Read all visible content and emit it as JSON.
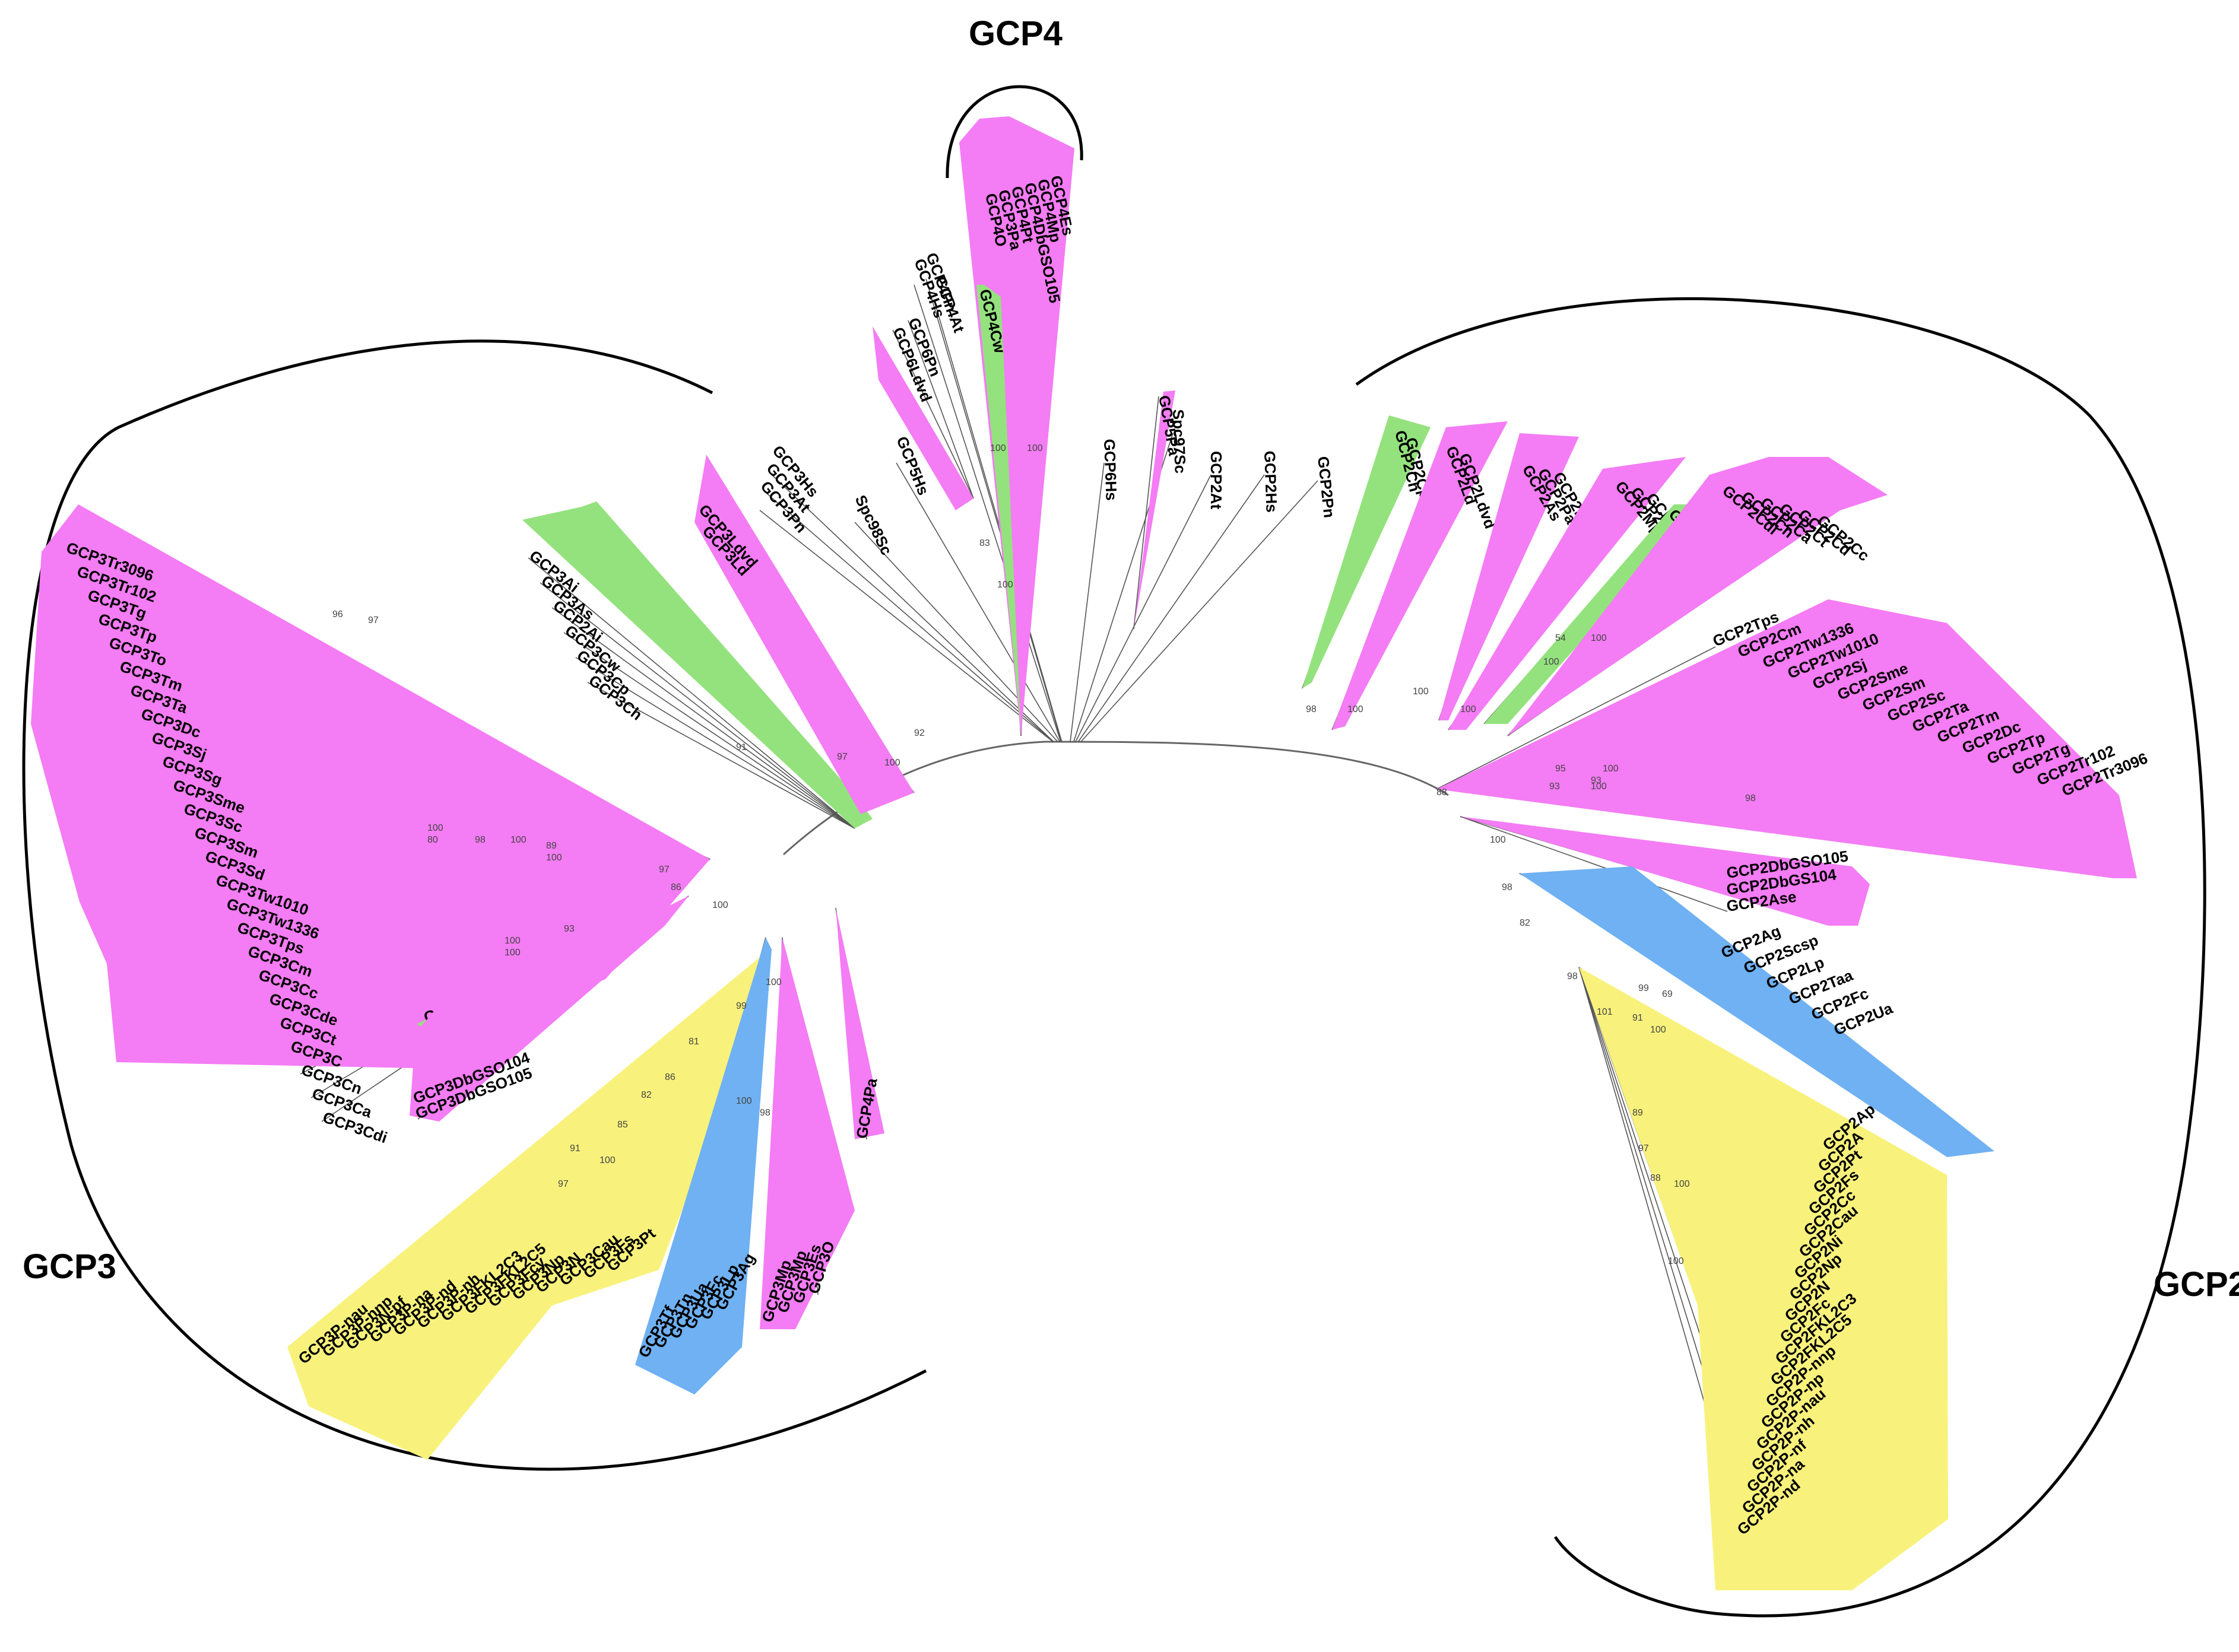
{
  "colors": {
    "pink": "#f47cf4",
    "green": "#94e27e",
    "blue": "#6fb1f2",
    "yellow": "#f8f27c"
  },
  "captions": {
    "gcp2": "GCP2",
    "gcp3": "GCP3",
    "gcp4": "GCP4"
  },
  "gcp3_groups": [
    {
      "name": "gcp3-main-pink",
      "color": "pink",
      "labels": [
        "GCP3Tr3096",
        "GCP3Tr102",
        "GCP3Tg",
        "GCP3Tp",
        "GCP3To",
        "GCP3Tm",
        "GCP3Ta",
        "GCP3Dc",
        "GCP3Sj",
        "GCP3Sg",
        "GCP3Sme",
        "GCP3Sc",
        "GCP3Sm",
        "GCP3Sd",
        "GCP3Tw1010",
        "GCP3Tw1336",
        "GCP3Tps",
        "GCP3Cm",
        "GCP3Cc",
        "GCP3Cde",
        "GCP3Ct",
        "GCP3C",
        "GCP3Cn",
        "GCP3Ca",
        "GCP3Cdi"
      ]
    },
    {
      "name": "gcp3-df-green",
      "color": "green",
      "labels": [
        "GCP3Df"
      ]
    },
    {
      "name": "gcp3-dbgso-pink",
      "color": "pink",
      "labels": [
        "GCP3DbGSO104",
        "GCP3DbGSO105"
      ]
    },
    {
      "name": "gcp3-plant-green",
      "color": "green",
      "labels": [
        "GCP3Ai",
        "GCP3As",
        "GCP2Ai",
        "GCP3Cw",
        "GCP3Cp",
        "GCP3Ch"
      ]
    },
    {
      "name": "gcp3-ld-pink",
      "color": "pink",
      "labels": [
        "GCP3Ldvd",
        "GCP3Ld"
      ]
    },
    {
      "name": "gcp3-yellow",
      "color": "yellow",
      "labels": [
        "GCP3P-nau",
        "GCP3P-nnp",
        "GCP3N-pf",
        "GCP3P-na",
        "GCP3P-nd",
        "GCP3P-nh",
        "GCP3FKL2C3",
        "GCP3FKL2C5",
        "GCP3Fcy",
        "GCP3Np",
        "GCP3N",
        "GCP3Cau",
        "GCP3Fs",
        "GCP3Pt"
      ]
    },
    {
      "name": "gcp3-blue",
      "color": "blue",
      "labels": [
        "GCP3Tf",
        "GCP3Tn",
        "GCP3Ua",
        "GCP3Fc",
        "GCP3Lp",
        "GCP3Ag"
      ]
    },
    {
      "name": "gcp3-es-pink",
      "color": "pink",
      "labels": [
        "GCP3Mp",
        "GCP3Mp",
        "GCP3Es",
        "GCP3O"
      ]
    },
    {
      "name": "gcp4pa-pink",
      "color": "pink",
      "labels": [
        "GCP4Pa"
      ]
    }
  ],
  "gcp4_groups": [
    {
      "name": "gcp4-main-pink",
      "color": "pink",
      "labels": [
        "GCP4Es",
        "GCP4Mp",
        "GCP4DbGSO105",
        "GCP4Pt",
        "GCP3Pa",
        "GCP4O"
      ]
    },
    {
      "name": "gcp4-cw-green",
      "color": "green",
      "labels": [
        "GCP4Cw"
      ]
    },
    {
      "name": "gcp6-ld-pink",
      "color": "pink",
      "labels": [
        "GCP6Pn",
        "GCP6Ldvd"
      ]
    }
  ],
  "gcp2_groups": [
    {
      "name": "gcp5pa-pink",
      "color": "pink",
      "labels": [
        "GCP5Pa"
      ]
    },
    {
      "name": "gcp2-ch-green",
      "color": "green",
      "labels": [
        "GCP2Ch",
        "GCP2Cp"
      ]
    },
    {
      "name": "gcp2-ld-pink",
      "color": "pink",
      "labels": [
        "GCP2Ld",
        "GCP2Ldvd"
      ]
    },
    {
      "name": "gcp2-as-pink",
      "color": "pink",
      "labels": [
        "GCP2As",
        "GCP2Pa",
        "GCP2Pi"
      ]
    },
    {
      "name": "gcp2-mp-pink",
      "color": "pink",
      "labels": [
        "GCP2Mp",
        "GCP2Es",
        "GCP2Ea"
      ]
    },
    {
      "name": "gcp2-df-green",
      "color": "green",
      "labels": [
        "GCP2Df"
      ]
    },
    {
      "name": "gcp2-c-pink",
      "color": "pink",
      "labels": [
        "GCP2Cdi",
        "GCP2Cn",
        "GCP2Ca",
        "GCP2Ct",
        "GCP2Cd",
        "GCP2Cc"
      ]
    },
    {
      "name": "gcp2-main-pink",
      "color": "pink",
      "labels": [
        "GCP2Tps",
        "GCP2Cm",
        "GCP2Tw1336",
        "GCP2Tw1010",
        "GCP2Sj",
        "GCP2Sme",
        "GCP2Sm",
        "GCP2Sc",
        "GCP2Ta",
        "GCP2Tm",
        "GCP2Dc",
        "GCP2Tp",
        "GCP2Tg",
        "GCP2Tr102",
        "GCP2Tr3096"
      ]
    },
    {
      "name": "gcp2-dbgso-pink",
      "color": "pink",
      "labels": [
        "GCP2DbGSO105",
        "GCP2DbGS104",
        "GCP2Ase"
      ]
    },
    {
      "name": "gcp2-blue",
      "color": "blue",
      "labels": [
        "GCP2Ag",
        "GCP2Scsp",
        "GCP2Lp",
        "GCP2Taa",
        "GCP2Fc",
        "GCP2Ua"
      ]
    },
    {
      "name": "gcp2-yellow",
      "color": "yellow",
      "labels": [
        "GCP2Ap",
        "GCP2A",
        "GCP2Pt",
        "GCP2Fs",
        "GCP2Cc",
        "GCP2Cau",
        "GCP2Ni",
        "GCP2Np",
        "GCP2N",
        "GCP2Fc",
        "GCP2FKL2C3",
        "GCP2FKL2C5",
        "GCP2P-nnp",
        "GCP2P-np",
        "GCP2P-nau",
        "GCP2P-nh",
        "GCP2P-nf",
        "GCP2P-na",
        "GCP2P-nd"
      ]
    }
  ],
  "uncolored_labels": [
    "GCP3Hs",
    "GCP3At",
    "GCP3Pn",
    "Spc98Sc",
    "GCP5Hs",
    "GCP4Pn",
    "GCP4Hs",
    "GCP4At",
    "GCP6Hs",
    "Spc97Sc",
    "GCP2At",
    "GCP2Hs",
    "GCP2Pn"
  ],
  "bootstrap": {
    "gcp3": [
      "96",
      "97",
      "100",
      "80",
      "98",
      "100",
      "89",
      "100",
      "97",
      "100",
      "93",
      "100",
      "86",
      "100",
      "91",
      "97",
      "92",
      "100",
      "100",
      "99",
      "81",
      "86",
      "82",
      "85",
      "91",
      "97",
      "100",
      "100",
      "98"
    ],
    "gcp4": [
      "100",
      "100",
      "83",
      "100"
    ],
    "gcp2": [
      "98",
      "100",
      "100",
      "100",
      "54",
      "100",
      "100",
      "95",
      "100",
      "93",
      "100",
      "93",
      "88",
      "98",
      "100",
      "98",
      "82",
      "98",
      "99",
      "69",
      "101",
      "91",
      "100",
      "89",
      "97",
      "88",
      "100",
      "100"
    ]
  }
}
